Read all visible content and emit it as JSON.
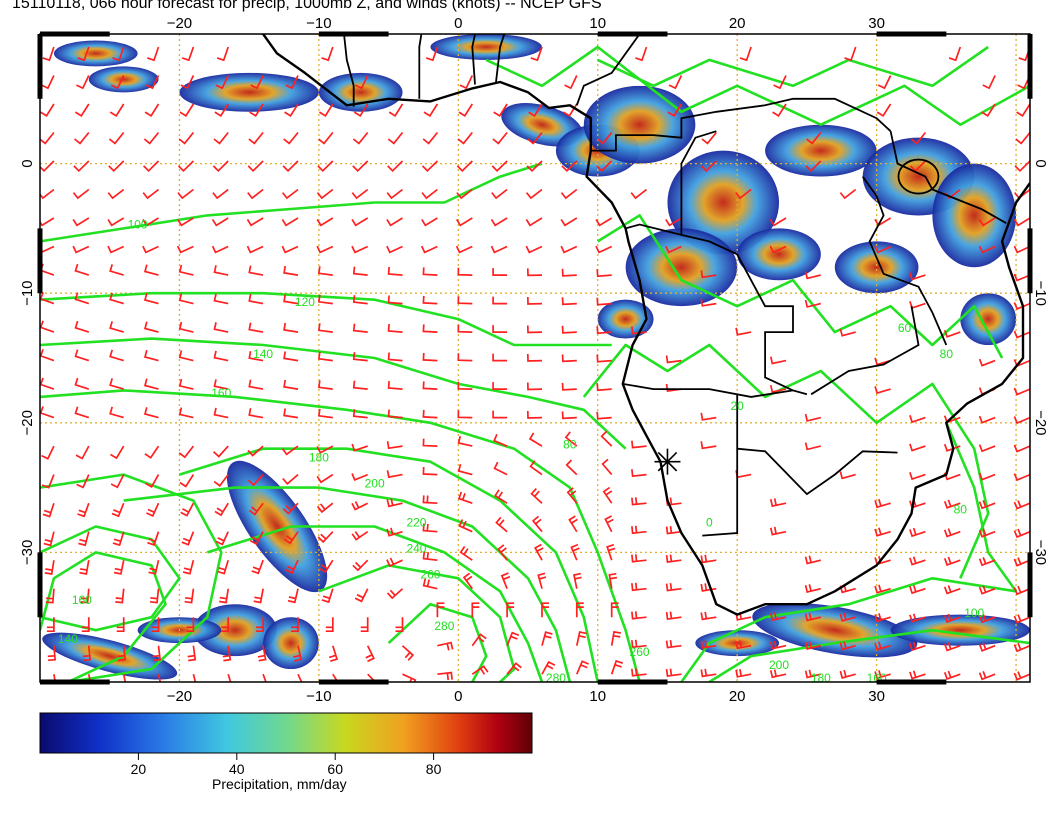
{
  "title": "15110118, 066 hour forecast for precip, 1000mb Z, and winds (knots) -- NCEP GFS",
  "map": {
    "lon_range": [
      -30,
      41
    ],
    "lat_range": [
      -40,
      10
    ],
    "lon_ticks": [
      -20,
      -10,
      0,
      10,
      20,
      30
    ],
    "lat_ticks": [
      0,
      -10,
      -20,
      -30
    ],
    "lon_tick_labels": [
      "−20",
      "−10",
      "0",
      "10",
      "20",
      "30"
    ],
    "lat_tick_labels": [
      "0",
      "−10",
      "−20",
      "−30"
    ],
    "grid_color": "#e0b030",
    "contour_color": "#22e022",
    "barb_color": "#ff2020",
    "coast_color": "#000000",
    "contour_labels": [
      {
        "text": "100",
        "lon": -23,
        "lat": -5
      },
      {
        "text": "120",
        "lon": -11,
        "lat": -11
      },
      {
        "text": "140",
        "lon": -14,
        "lat": -15
      },
      {
        "text": "160",
        "lon": -17,
        "lat": -18
      },
      {
        "text": "180",
        "lon": -10,
        "lat": -23
      },
      {
        "text": "200",
        "lon": -6,
        "lat": -25
      },
      {
        "text": "220",
        "lon": -3,
        "lat": -28
      },
      {
        "text": "240",
        "lon": -3,
        "lat": -30
      },
      {
        "text": "260",
        "lon": -2,
        "lat": -32
      },
      {
        "text": "280",
        "lon": -1,
        "lat": -36
      },
      {
        "text": "280",
        "lon": 7,
        "lat": -40
      },
      {
        "text": "260",
        "lon": 13,
        "lat": -38
      },
      {
        "text": "160",
        "lon": -27,
        "lat": -34
      },
      {
        "text": "140",
        "lon": -28,
        "lat": -37
      },
      {
        "text": "80",
        "lon": 8,
        "lat": -22
      },
      {
        "text": "60",
        "lon": 32,
        "lat": -13
      },
      {
        "text": "80",
        "lon": 35,
        "lat": -15
      },
      {
        "text": "80",
        "lon": 36,
        "lat": -27
      },
      {
        "text": "200",
        "lon": 23,
        "lat": -39
      },
      {
        "text": "180",
        "lon": 26,
        "lat": -40
      },
      {
        "text": "160",
        "lon": 30,
        "lat": -40
      },
      {
        "text": "100",
        "lon": 37,
        "lat": -35
      },
      {
        "text": "20",
        "lon": 20,
        "lat": -19
      },
      {
        "text": "0",
        "lon": 18,
        "lat": -28
      }
    ],
    "marker": {
      "lon": 15,
      "lat": -23,
      "symbol": "asterisk"
    }
  },
  "colorbar": {
    "label": "Precipitation, mm/day",
    "min": 0,
    "max": 100,
    "ticks": [
      20,
      40,
      60,
      80
    ],
    "tick_labels": [
      "20",
      "40",
      "60",
      "80"
    ],
    "colors": [
      "#0a0a6e",
      "#1030c8",
      "#2a7ae6",
      "#40c8e0",
      "#70d890",
      "#c8d820",
      "#f0a020",
      "#e04010",
      "#b00010",
      "#600008"
    ]
  }
}
